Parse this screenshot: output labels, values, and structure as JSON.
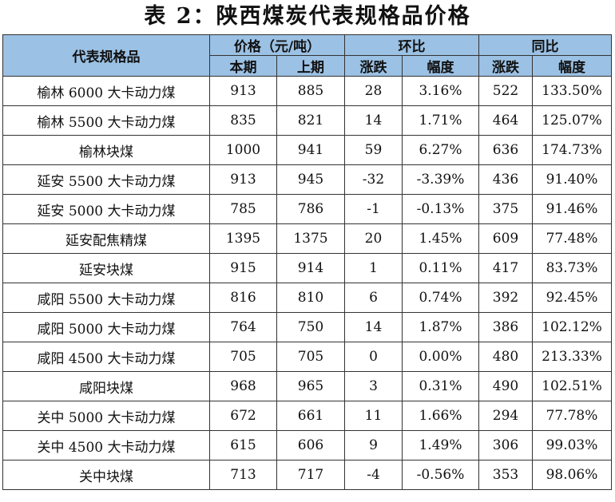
{
  "title": "表 2：陕西煤炭代表规格品价格",
  "headers": {
    "item": "代表规格品",
    "price": "价格（元/吨）",
    "mom": "环比",
    "yoy": "同比",
    "current": "本期",
    "previous": "上期",
    "mom_change": "涨跌",
    "mom_rate": "幅度",
    "yoy_change": "涨跌",
    "yoy_rate": "幅度"
  },
  "rows": [
    {
      "name": "榆林 6000 大卡动力煤",
      "current": "913",
      "previous": "885",
      "mom_change": "28",
      "mom_rate": "3.16%",
      "yoy_change": "522",
      "yoy_rate": "133.50%"
    },
    {
      "name": "榆林 5500 大卡动力煤",
      "current": "835",
      "previous": "821",
      "mom_change": "14",
      "mom_rate": "1.71%",
      "yoy_change": "464",
      "yoy_rate": "125.07%"
    },
    {
      "name": "榆林块煤",
      "current": "1000",
      "previous": "941",
      "mom_change": "59",
      "mom_rate": "6.27%",
      "yoy_change": "636",
      "yoy_rate": "174.73%"
    },
    {
      "name": "延安 5500 大卡动力煤",
      "current": "913",
      "previous": "945",
      "mom_change": "-32",
      "mom_rate": "-3.39%",
      "yoy_change": "436",
      "yoy_rate": "91.40%"
    },
    {
      "name": "延安 5000 大卡动力煤",
      "current": "785",
      "previous": "786",
      "mom_change": "-1",
      "mom_rate": "-0.13%",
      "yoy_change": "375",
      "yoy_rate": "91.46%"
    },
    {
      "name": "延安配焦精煤",
      "current": "1395",
      "previous": "1375",
      "mom_change": "20",
      "mom_rate": "1.45%",
      "yoy_change": "609",
      "yoy_rate": "77.48%"
    },
    {
      "name": "延安块煤",
      "current": "915",
      "previous": "914",
      "mom_change": "1",
      "mom_rate": "0.11%",
      "yoy_change": "417",
      "yoy_rate": "83.73%"
    },
    {
      "name": "咸阳 5500 大卡动力煤",
      "current": "816",
      "previous": "810",
      "mom_change": "6",
      "mom_rate": "0.74%",
      "yoy_change": "392",
      "yoy_rate": "92.45%"
    },
    {
      "name": "咸阳 5000 大卡动力煤",
      "current": "764",
      "previous": "750",
      "mom_change": "14",
      "mom_rate": "1.87%",
      "yoy_change": "386",
      "yoy_rate": "102.12%"
    },
    {
      "name": "咸阳 4500 大卡动力煤",
      "current": "705",
      "previous": "705",
      "mom_change": "0",
      "mom_rate": "0.00%",
      "yoy_change": "480",
      "yoy_rate": "213.33%"
    },
    {
      "name": "咸阳块煤",
      "current": "968",
      "previous": "965",
      "mom_change": "3",
      "mom_rate": "0.31%",
      "yoy_change": "490",
      "yoy_rate": "102.51%"
    },
    {
      "name": "关中 5000 大卡动力煤",
      "current": "672",
      "previous": "661",
      "mom_change": "11",
      "mom_rate": "1.66%",
      "yoy_change": "294",
      "yoy_rate": "77.78%"
    },
    {
      "name": "关中 4500 大卡动力煤",
      "current": "615",
      "previous": "606",
      "mom_change": "9",
      "mom_rate": "1.49%",
      "yoy_change": "306",
      "yoy_rate": "99.03%"
    },
    {
      "name": "关中块煤",
      "current": "713",
      "previous": "717",
      "mom_change": "-4",
      "mom_rate": "-0.56%",
      "yoy_change": "353",
      "yoy_rate": "98.06%"
    }
  ]
}
